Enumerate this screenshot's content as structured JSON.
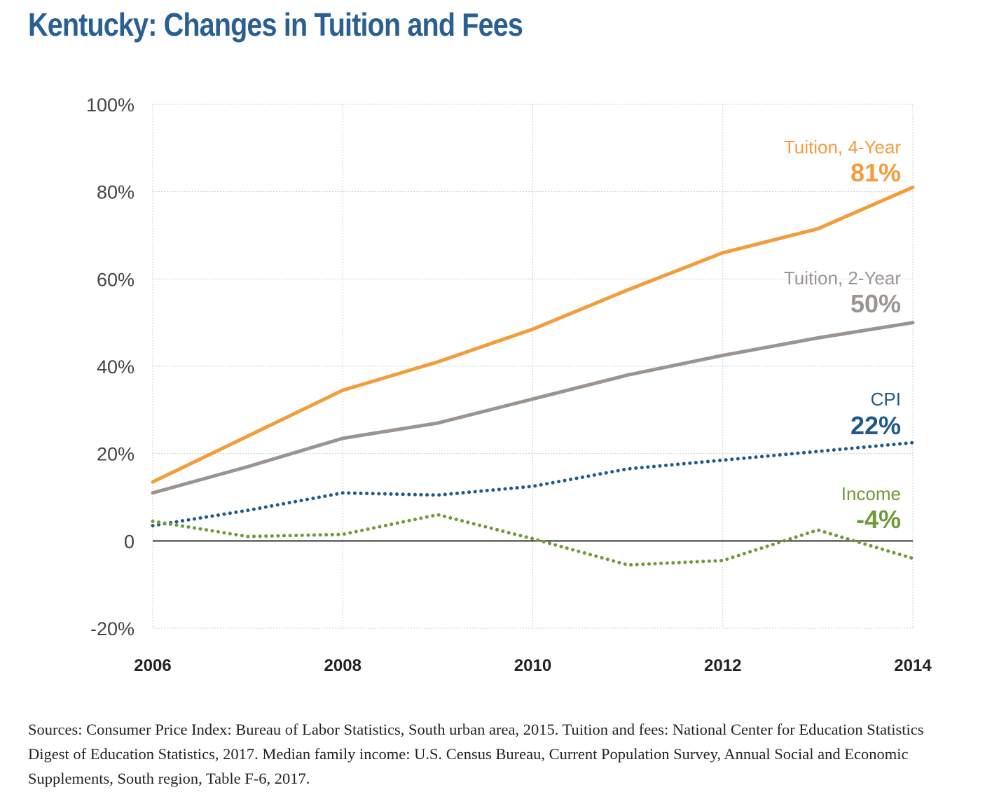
{
  "title": "Kentucky: Changes in Tuition and Fees",
  "sources": "Sources: Consumer Price Index: Bureau of Labor Statistics, South urban area, 2015. Tuition and fees: National Center for Education Statistics Digest of Education Statistics, 2017. Median family income: U.S. Census Bureau, Current Population Survey, Annual Social and Economic Supplements, South region, Table F-6, 2017.",
  "chart_data": {
    "type": "line",
    "title": "Kentucky: Changes in Tuition and Fees",
    "xlabel": "",
    "ylabel": "",
    "x": [
      2006,
      2007,
      2008,
      2009,
      2010,
      2011,
      2012,
      2013,
      2014
    ],
    "xticks": [
      "2006",
      "2008",
      "2010",
      "2012",
      "2014"
    ],
    "xlim": [
      2006,
      2014
    ],
    "ylim": [
      -20,
      100
    ],
    "yticks": [
      -20,
      0,
      20,
      40,
      60,
      80,
      100
    ],
    "ytick_labels": [
      "-20%",
      "0",
      "20%",
      "40%",
      "60%",
      "80%",
      "100%"
    ],
    "grid": true,
    "series": [
      {
        "name": "Tuition, 4-Year",
        "label": "Tuition, 4-Year",
        "value_label": "81%",
        "color": "#f39c3b",
        "style": "solid",
        "values": [
          13.5,
          24,
          34.5,
          41,
          48.5,
          57.5,
          66,
          71.5,
          81
        ]
      },
      {
        "name": "Tuition, 2-Year",
        "label": "Tuition, 2-Year",
        "value_label": "50%",
        "color": "#9b9591",
        "style": "solid",
        "values": [
          11,
          17,
          23.5,
          27,
          32.5,
          38,
          42.5,
          46.5,
          50
        ]
      },
      {
        "name": "CPI",
        "label": "CPI",
        "value_label": "22%",
        "color": "#1f5a8a",
        "style": "dotted",
        "values": [
          3.5,
          7,
          11,
          10.5,
          12.5,
          16.5,
          18.5,
          20.5,
          22.5
        ]
      },
      {
        "name": "Income",
        "label": "Income",
        "value_label": "-4%",
        "color": "#6f9a3a",
        "style": "dotted",
        "values": [
          4.5,
          1,
          1.5,
          6,
          0.5,
          -5.5,
          -4.5,
          2.5,
          -4
        ]
      }
    ]
  }
}
